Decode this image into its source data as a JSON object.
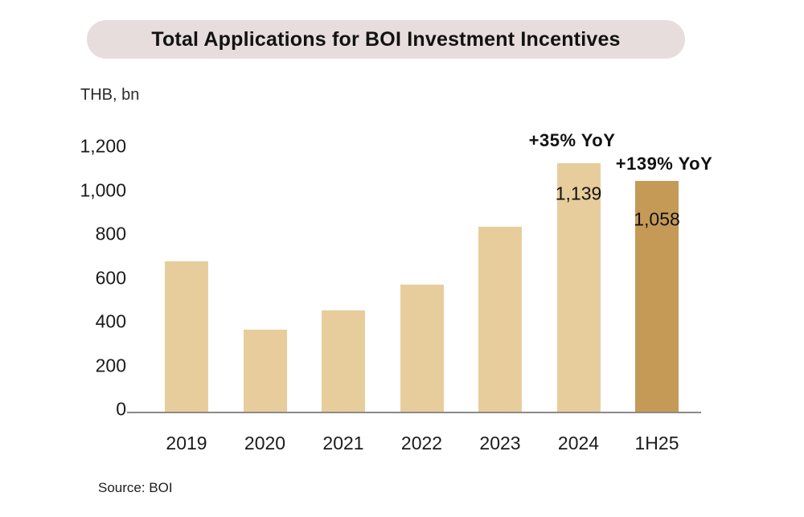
{
  "title": "Total Applications for BOI Investment Incentives",
  "unit_label": "THB, bn",
  "source": "Source: BOI",
  "colors": {
    "bar_light": "#e8cd9c",
    "bar_dark": "#c59a57",
    "title_bg": "#e6dddc",
    "axis": "#8a8a8a"
  },
  "chart_data": {
    "type": "bar",
    "title": "Total Applications for BOI Investment Incentives",
    "ylabel": "THB, bn",
    "categories": [
      "2019",
      "2020",
      "2021",
      "2022",
      "2023",
      "2024",
      "1H25"
    ],
    "values": [
      690,
      380,
      465,
      585,
      848,
      1139,
      1058
    ],
    "bar_labels": [
      "",
      "",
      "",
      "",
      "",
      "1,139",
      "1,058"
    ],
    "annotations": [
      {
        "category": "2024",
        "text": "+35% YoY"
      },
      {
        "category": "1H25",
        "text": "+139% YoY"
      }
    ],
    "yticks": [
      "0",
      "200",
      "400",
      "600",
      "800",
      "1,000",
      "1,200"
    ],
    "ylim": [
      0,
      1200
    ],
    "grid": false,
    "legend": false,
    "highlight_index": 6,
    "source": "Source: BOI"
  }
}
